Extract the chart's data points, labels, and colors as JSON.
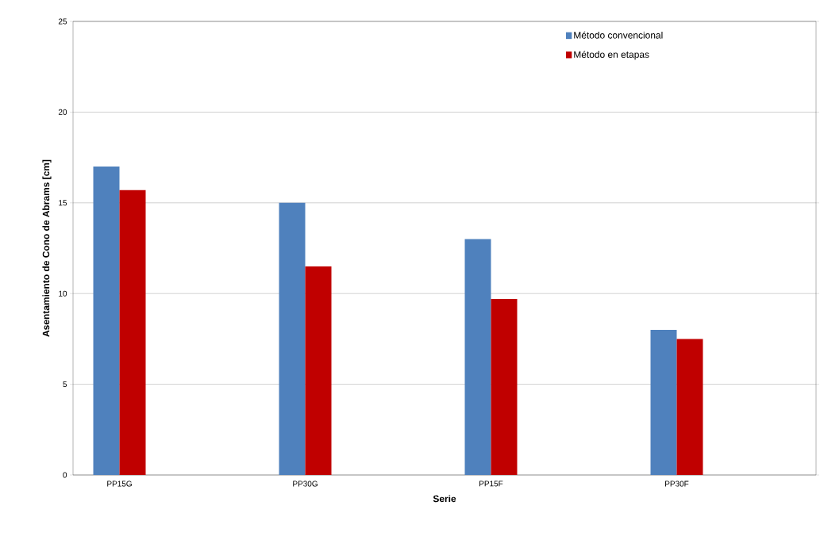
{
  "chart_data": {
    "type": "bar",
    "xlabel": "Serie",
    "ylabel": "Asentamiento de Cono de Abrams [cm]",
    "categories": [
      "PP15G",
      "PP30G",
      "PP15F",
      "PP30F"
    ],
    "series": [
      {
        "name": "Método convencional",
        "color": "#4f81bd",
        "values": [
          17,
          15,
          13,
          8
        ]
      },
      {
        "name": "Método en etapas",
        "color": "#c00000",
        "values": [
          15.7,
          11.5,
          9.7,
          7.5
        ]
      }
    ],
    "ylim": [
      0,
      25
    ],
    "yticks": [
      0,
      5,
      10,
      15,
      20,
      25
    ],
    "grid": "y",
    "legend": "top right"
  }
}
